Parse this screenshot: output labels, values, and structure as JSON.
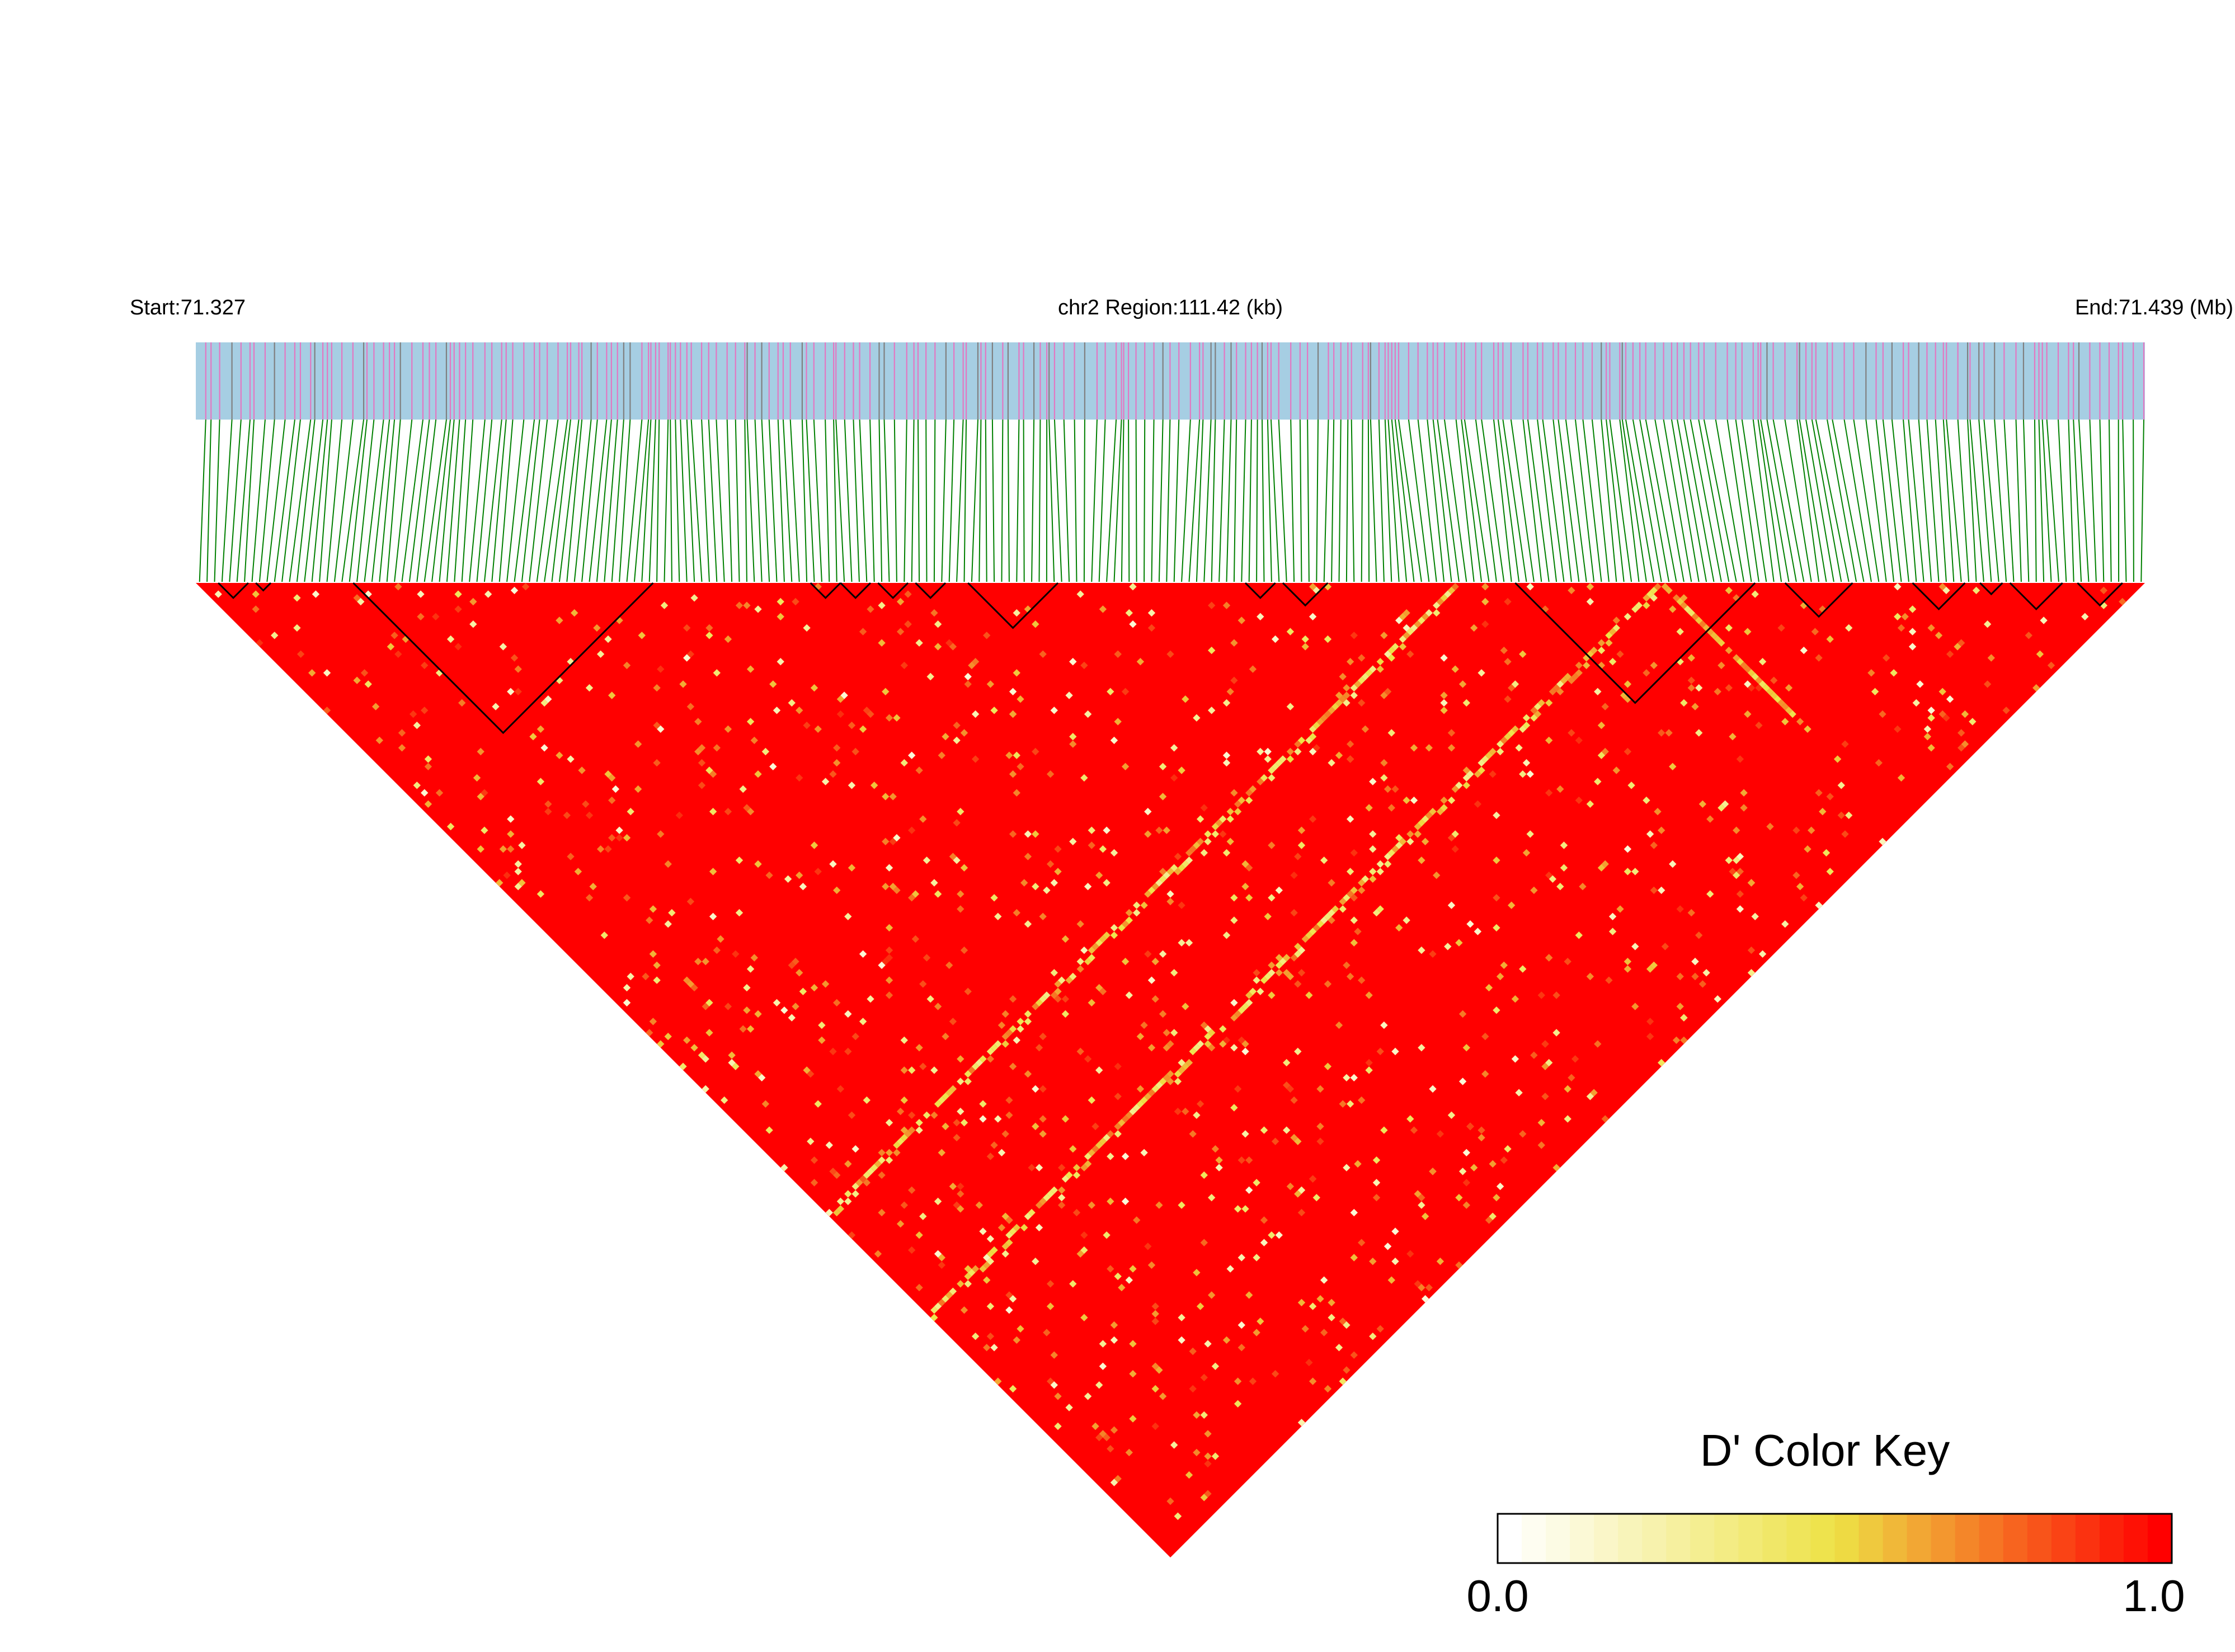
{
  "chart_data": {
    "type": "heatmap",
    "subtype": "linkage-disequilibrium-triangle",
    "header": {
      "start_label": "Start:71.327",
      "region_label": "chr2 Region:111.42 (kb)",
      "end_label": "End:71.439 (Mb)"
    },
    "region": {
      "chromosome": "chr2",
      "start_mb": 71.327,
      "end_mb": 71.439,
      "length_kb": 111.42
    },
    "snp_track": {
      "background_color": "#a6cee3",
      "marker_colors": [
        "#e377c2",
        "#808080"
      ],
      "connector_color": "#008000"
    },
    "heatmap": {
      "metric": "D'",
      "dominant_value": 1.0,
      "low_color": "#ffffff",
      "mid_color": "#ede246",
      "high_color": "#ff0000",
      "block_outline_color": "#000000"
    },
    "color_key": {
      "title": "D' Color Key",
      "min_label": "0.0",
      "max_label": "1.0",
      "range": [
        0.0,
        1.0
      ]
    }
  }
}
